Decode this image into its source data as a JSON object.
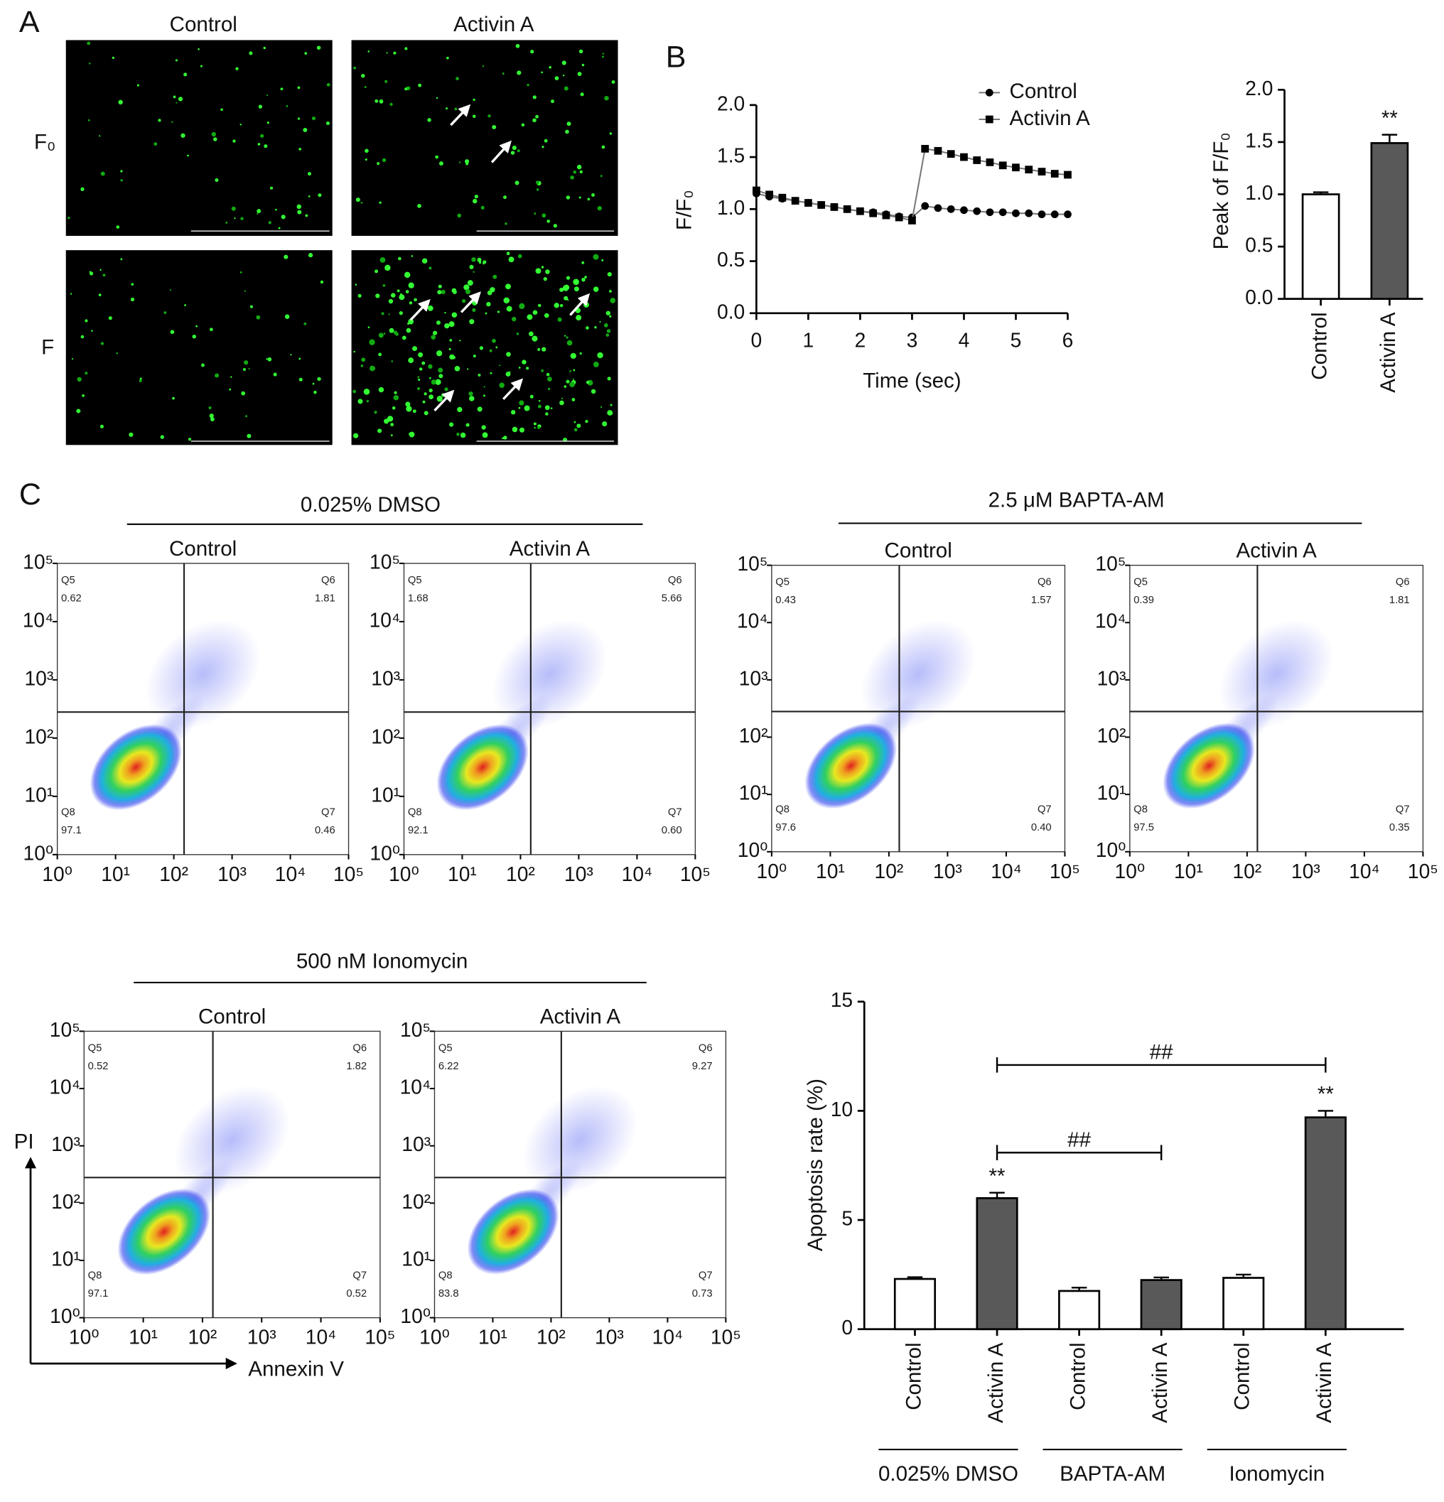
{
  "panel_labels": [
    "A",
    "B",
    "C"
  ],
  "microscopy": {
    "columns": [
      "Control",
      "Activin A"
    ],
    "rows": [
      "F₀",
      "F"
    ]
  },
  "flow_groups": [
    "0.025% DMSO",
    "2.5 μM BAPTA-AM",
    "500 nM Ionomycin"
  ],
  "flow_axis_labels": {
    "x": "Annexin V",
    "y": "PI"
  },
  "chart_data": [
    {
      "type": "line",
      "x_label": "Time (sec)",
      "y_label": "F/F₀",
      "legend": "top-right",
      "x": [
        0,
        0.25,
        0.5,
        0.75,
        1,
        1.25,
        1.5,
        1.75,
        2,
        2.25,
        2.5,
        2.75,
        3,
        3.25,
        3.5,
        3.75,
        4,
        4.25,
        4.5,
        4.75,
        5,
        5.25,
        5.5,
        5.75,
        6
      ],
      "series": [
        {
          "name": "Control",
          "color": "#000000",
          "marker": "circle",
          "values": [
            1.15,
            1.12,
            1.1,
            1.08,
            1.06,
            1.04,
            1.02,
            1.0,
            0.98,
            0.97,
            0.95,
            0.93,
            0.92,
            1.03,
            1.01,
            1.0,
            0.99,
            0.98,
            0.97,
            0.97,
            0.96,
            0.96,
            0.95,
            0.95,
            0.95
          ]
        },
        {
          "name": "Activin A",
          "color": "#000000",
          "marker": "square",
          "values": [
            1.18,
            1.14,
            1.11,
            1.08,
            1.06,
            1.04,
            1.02,
            1.0,
            0.98,
            0.96,
            0.94,
            0.92,
            0.89,
            1.58,
            1.56,
            1.53,
            1.5,
            1.47,
            1.45,
            1.42,
            1.4,
            1.38,
            1.36,
            1.34,
            1.33
          ]
        }
      ],
      "xlim": [
        0,
        6
      ],
      "xticks": [
        0,
        1,
        2,
        3,
        4,
        5,
        6
      ],
      "ylim": [
        0,
        2
      ],
      "yticks": [
        {
          "value": 0,
          "label": "0.0"
        },
        {
          "value": 0.5,
          "label": "0.5"
        },
        {
          "value": 1,
          "label": "1.0"
        },
        {
          "value": 1.5,
          "label": "1.5"
        },
        {
          "value": 2,
          "label": "2.0"
        }
      ]
    },
    {
      "type": "bar",
      "y_label": "Peak of F/F₀",
      "categories": [
        "Control",
        "Activin A"
      ],
      "values": [
        1.0,
        1.49
      ],
      "errors": [
        0.02,
        0.08
      ],
      "colors": [
        "#ffffff",
        "#595959"
      ],
      "annotations": [
        {
          "text": "**",
          "index": 1
        }
      ],
      "ylim": [
        0,
        2
      ],
      "yticks": [
        {
          "value": 0,
          "label": "0.0"
        },
        {
          "value": 0.5,
          "label": "0.5"
        },
        {
          "value": 1,
          "label": "1.0"
        },
        {
          "value": 1.5,
          "label": "1.5"
        },
        {
          "value": 2,
          "label": "2.0"
        }
      ]
    },
    {
      "type": "flow",
      "title": "Control",
      "quadrants": [
        "Q5",
        "Q6",
        "Q7",
        "Q8"
      ],
      "values": [
        0.62,
        1.81,
        0.46,
        97.1
      ],
      "gate": [
        150,
        280
      ],
      "xlim": [
        1,
        100000
      ],
      "ylim": [
        1,
        100000
      ],
      "log": true,
      "xticks": [
        {
          "value": 1,
          "label": "10⁰"
        },
        {
          "value": 10,
          "label": "10¹"
        },
        {
          "value": 100,
          "label": "10²"
        },
        {
          "value": 1000,
          "label": "10³"
        },
        {
          "value": 10000,
          "label": "10⁴"
        },
        {
          "value": 100000,
          "label": "10⁵"
        }
      ],
      "yticks": [
        {
          "value": 1,
          "label": "10⁰"
        },
        {
          "value": 10,
          "label": "10¹"
        },
        {
          "value": 100,
          "label": "10²"
        },
        {
          "value": 1000,
          "label": "10³"
        },
        {
          "value": 10000,
          "label": "10⁴"
        },
        {
          "value": 100000,
          "label": "10⁵"
        }
      ]
    },
    {
      "type": "flow",
      "title": "Activin A",
      "quadrants": [
        "Q5",
        "Q6",
        "Q7",
        "Q8"
      ],
      "values": [
        1.68,
        5.66,
        0.6,
        92.1
      ],
      "value_labels": [
        "1.68",
        "5.66",
        "0.60",
        "92.1"
      ],
      "gate": [
        150,
        280
      ],
      "xlim": [
        1,
        100000
      ],
      "ylim": [
        1,
        100000
      ],
      "log": true,
      "xticks": [
        {
          "value": 1,
          "label": "10⁰"
        },
        {
          "value": 10,
          "label": "10¹"
        },
        {
          "value": 100,
          "label": "10²"
        },
        {
          "value": 1000,
          "label": "10³"
        },
        {
          "value": 10000,
          "label": "10⁴"
        },
        {
          "value": 100000,
          "label": "10⁵"
        }
      ],
      "yticks": [
        {
          "value": 1,
          "label": "10⁰"
        },
        {
          "value": 10,
          "label": "10¹"
        },
        {
          "value": 100,
          "label": "10²"
        },
        {
          "value": 1000,
          "label": "10³"
        },
        {
          "value": 10000,
          "label": "10⁴"
        },
        {
          "value": 100000,
          "label": "10⁵"
        }
      ]
    },
    {
      "type": "flow",
      "title": "Control",
      "quadrants": [
        "Q5",
        "Q6",
        "Q7",
        "Q8"
      ],
      "values": [
        0.43,
        1.57,
        0.4,
        97.6
      ],
      "value_labels": [
        "0.43",
        "1.57",
        "0.40",
        "97.6"
      ],
      "gate": [
        150,
        280
      ],
      "xlim": [
        1,
        100000
      ],
      "ylim": [
        1,
        100000
      ],
      "log": true,
      "xticks": [
        {
          "value": 1,
          "label": "10⁰"
        },
        {
          "value": 10,
          "label": "10¹"
        },
        {
          "value": 100,
          "label": "10²"
        },
        {
          "value": 1000,
          "label": "10³"
        },
        {
          "value": 10000,
          "label": "10⁴"
        },
        {
          "value": 100000,
          "label": "10⁵"
        }
      ],
      "yticks": [
        {
          "value": 1,
          "label": "10⁰"
        },
        {
          "value": 10,
          "label": "10¹"
        },
        {
          "value": 100,
          "label": "10²"
        },
        {
          "value": 1000,
          "label": "10³"
        },
        {
          "value": 10000,
          "label": "10⁴"
        },
        {
          "value": 100000,
          "label": "10⁵"
        }
      ]
    },
    {
      "type": "flow",
      "title": "Activin A",
      "quadrants": [
        "Q5",
        "Q6",
        "Q7",
        "Q8"
      ],
      "values": [
        0.39,
        1.81,
        0.35,
        97.5
      ],
      "gate": [
        150,
        280
      ],
      "xlim": [
        1,
        100000
      ],
      "ylim": [
        1,
        100000
      ],
      "log": true,
      "xticks": [
        {
          "value": 1,
          "label": "10⁰"
        },
        {
          "value": 10,
          "label": "10¹"
        },
        {
          "value": 100,
          "label": "10²"
        },
        {
          "value": 1000,
          "label": "10³"
        },
        {
          "value": 10000,
          "label": "10⁴"
        },
        {
          "value": 100000,
          "label": "10⁵"
        }
      ],
      "yticks": [
        {
          "value": 1,
          "label": "10⁰"
        },
        {
          "value": 10,
          "label": "10¹"
        },
        {
          "value": 100,
          "label": "10²"
        },
        {
          "value": 1000,
          "label": "10³"
        },
        {
          "value": 10000,
          "label": "10⁴"
        },
        {
          "value": 100000,
          "label": "10⁵"
        }
      ]
    },
    {
      "type": "flow",
      "title": "Control",
      "quadrants": [
        "Q5",
        "Q6",
        "Q7",
        "Q8"
      ],
      "values": [
        0.52,
        1.82,
        0.52,
        97.1
      ],
      "gate": [
        150,
        280
      ],
      "xlim": [
        1,
        100000
      ],
      "ylim": [
        1,
        100000
      ],
      "log": true,
      "xticks": [
        {
          "value": 1,
          "label": "10⁰"
        },
        {
          "value": 10,
          "label": "10¹"
        },
        {
          "value": 100,
          "label": "10²"
        },
        {
          "value": 1000,
          "label": "10³"
        },
        {
          "value": 10000,
          "label": "10⁴"
        },
        {
          "value": 100000,
          "label": "10⁵"
        }
      ],
      "yticks": [
        {
          "value": 1,
          "label": "10⁰"
        },
        {
          "value": 10,
          "label": "10¹"
        },
        {
          "value": 100,
          "label": "10²"
        },
        {
          "value": 1000,
          "label": "10³"
        },
        {
          "value": 10000,
          "label": "10⁴"
        },
        {
          "value": 100000,
          "label": "10⁵"
        }
      ]
    },
    {
      "type": "flow",
      "title": "Activin A",
      "quadrants": [
        "Q5",
        "Q6",
        "Q7",
        "Q8"
      ],
      "values": [
        6.22,
        9.27,
        0.73,
        83.8
      ],
      "gate": [
        150,
        280
      ],
      "xlim": [
        1,
        100000
      ],
      "ylim": [
        1,
        100000
      ],
      "log": true,
      "xticks": [
        {
          "value": 1,
          "label": "10⁰"
        },
        {
          "value": 10,
          "label": "10¹"
        },
        {
          "value": 100,
          "label": "10²"
        },
        {
          "value": 1000,
          "label": "10³"
        },
        {
          "value": 10000,
          "label": "10⁴"
        },
        {
          "value": 100000,
          "label": "10⁵"
        }
      ],
      "yticks": [
        {
          "value": 1,
          "label": "10⁰"
        },
        {
          "value": 10,
          "label": "10¹"
        },
        {
          "value": 100,
          "label": "10²"
        },
        {
          "value": 1000,
          "label": "10³"
        },
        {
          "value": 10000,
          "label": "10⁴"
        },
        {
          "value": 100000,
          "label": "10⁵"
        }
      ]
    },
    {
      "type": "bar",
      "y_label": "Apoptosis rate (%)",
      "categories": [
        "Control",
        "Activin A",
        "Control",
        "Activin A",
        "Control",
        "Activin A"
      ],
      "values": [
        2.3,
        6.0,
        1.75,
        2.25,
        2.35,
        9.7
      ],
      "errors": [
        0.08,
        0.25,
        0.15,
        0.12,
        0.15,
        0.3
      ],
      "colors": [
        "#ffffff",
        "#595959",
        "#ffffff",
        "#595959",
        "#ffffff",
        "#595959"
      ],
      "annotations": [
        {
          "text": "**",
          "index": 1
        },
        {
          "text": "**",
          "index": 5
        }
      ],
      "brackets": [
        {
          "from": 1,
          "to": 3,
          "text": "##"
        },
        {
          "from": 1,
          "to": 5,
          "text": "##"
        }
      ],
      "groups": [
        {
          "label": "0.025% DMSO",
          "start": 0,
          "end": 1
        },
        {
          "label": "BAPTA-AM",
          "start": 2,
          "end": 3
        },
        {
          "label": "Ionomycin",
          "start": 4,
          "end": 5
        }
      ],
      "ylim": [
        0,
        15
      ],
      "yticks": [
        0,
        5,
        10,
        15
      ]
    }
  ]
}
